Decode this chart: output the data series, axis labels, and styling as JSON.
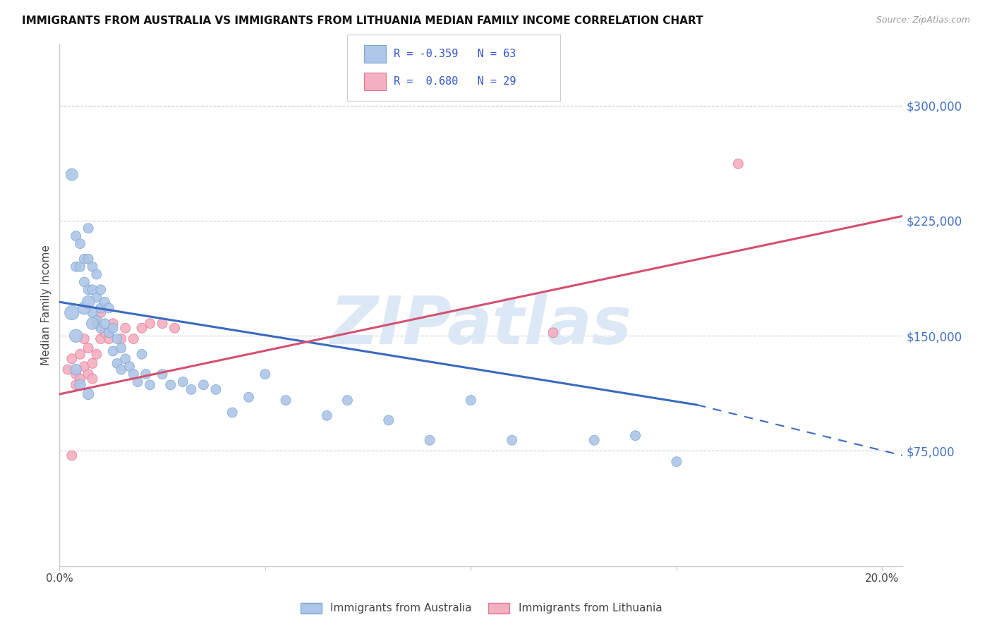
{
  "title": "IMMIGRANTS FROM AUSTRALIA VS IMMIGRANTS FROM LITHUANIA MEDIAN FAMILY INCOME CORRELATION CHART",
  "source": "Source: ZipAtlas.com",
  "ylabel": "Median Family Income",
  "xlim": [
    0.0,
    0.205
  ],
  "ylim": [
    0,
    340000
  ],
  "ytick_vals": [
    75000,
    150000,
    225000,
    300000
  ],
  "ytick_labels": [
    "$75,000",
    "$150,000",
    "$225,000",
    "$300,000"
  ],
  "xtick_vals": [
    0.0,
    0.05,
    0.1,
    0.15,
    0.2
  ],
  "xtick_labels": [
    "0.0%",
    "",
    "",
    "",
    "20.0%"
  ],
  "australia_color": "#aec6e8",
  "australia_edge": "#7ba7d0",
  "lithuania_color": "#f4afc0",
  "lithuania_edge": "#e07898",
  "trend_australia_color": "#3a6abf",
  "trend_lithuania_color": "#d45070",
  "watermark_color": "#dce8f5",
  "grid_color": "#cccccc",
  "aus_x": [
    0.003,
    0.004,
    0.004,
    0.005,
    0.005,
    0.006,
    0.006,
    0.007,
    0.007,
    0.007,
    0.008,
    0.008,
    0.008,
    0.009,
    0.009,
    0.009,
    0.01,
    0.01,
    0.01,
    0.011,
    0.011,
    0.012,
    0.012,
    0.013,
    0.013,
    0.014,
    0.014,
    0.015,
    0.015,
    0.016,
    0.017,
    0.018,
    0.019,
    0.02,
    0.021,
    0.022,
    0.025,
    0.027,
    0.03,
    0.032,
    0.035,
    0.038,
    0.042,
    0.046,
    0.05,
    0.055,
    0.065,
    0.07,
    0.08,
    0.09,
    0.1,
    0.11,
    0.13,
    0.14,
    0.15,
    0.003,
    0.004,
    0.006,
    0.007,
    0.008,
    0.004,
    0.005,
    0.007
  ],
  "aus_y": [
    255000,
    215000,
    195000,
    210000,
    195000,
    200000,
    185000,
    220000,
    200000,
    180000,
    195000,
    180000,
    165000,
    190000,
    175000,
    160000,
    180000,
    168000,
    155000,
    172000,
    158000,
    168000,
    152000,
    155000,
    140000,
    148000,
    132000,
    142000,
    128000,
    135000,
    130000,
    125000,
    120000,
    138000,
    125000,
    118000,
    125000,
    118000,
    120000,
    115000,
    118000,
    115000,
    100000,
    110000,
    125000,
    108000,
    98000,
    108000,
    95000,
    82000,
    108000,
    82000,
    82000,
    85000,
    68000,
    165000,
    150000,
    168000,
    172000,
    158000,
    128000,
    118000,
    112000
  ],
  "aus_sizes": [
    60,
    40,
    40,
    40,
    40,
    40,
    40,
    40,
    40,
    40,
    40,
    40,
    40,
    40,
    40,
    40,
    40,
    40,
    40,
    40,
    40,
    40,
    40,
    40,
    40,
    40,
    40,
    40,
    40,
    40,
    40,
    40,
    40,
    40,
    40,
    40,
    40,
    40,
    40,
    40,
    40,
    40,
    40,
    40,
    40,
    40,
    40,
    40,
    40,
    40,
    40,
    40,
    40,
    40,
    40,
    85,
    70,
    65,
    65,
    60,
    50,
    50,
    50
  ],
  "lit_x": [
    0.002,
    0.003,
    0.004,
    0.004,
    0.005,
    0.005,
    0.006,
    0.006,
    0.007,
    0.007,
    0.008,
    0.008,
    0.009,
    0.009,
    0.01,
    0.01,
    0.011,
    0.012,
    0.013,
    0.015,
    0.016,
    0.018,
    0.02,
    0.022,
    0.025,
    0.028,
    0.12,
    0.165,
    0.003
  ],
  "lit_y": [
    128000,
    135000,
    125000,
    118000,
    138000,
    122000,
    148000,
    130000,
    142000,
    125000,
    132000,
    122000,
    158000,
    138000,
    165000,
    148000,
    152000,
    148000,
    158000,
    148000,
    155000,
    148000,
    155000,
    158000,
    158000,
    155000,
    152000,
    262000,
    72000
  ],
  "lit_sizes": [
    40,
    40,
    40,
    40,
    40,
    40,
    40,
    40,
    40,
    40,
    40,
    40,
    40,
    40,
    40,
    40,
    40,
    40,
    40,
    40,
    40,
    40,
    40,
    40,
    40,
    40,
    40,
    40,
    40
  ],
  "trend_aus_x0": 0.0,
  "trend_aus_y0": 172000,
  "trend_aus_x1": 0.155,
  "trend_aus_y1": 105000,
  "trend_aus_dash_x1": 0.205,
  "trend_aus_dash_y1": 72000,
  "trend_lit_x0": 0.0,
  "trend_lit_y0": 112000,
  "trend_lit_x1": 0.205,
  "trend_lit_y1": 228000
}
